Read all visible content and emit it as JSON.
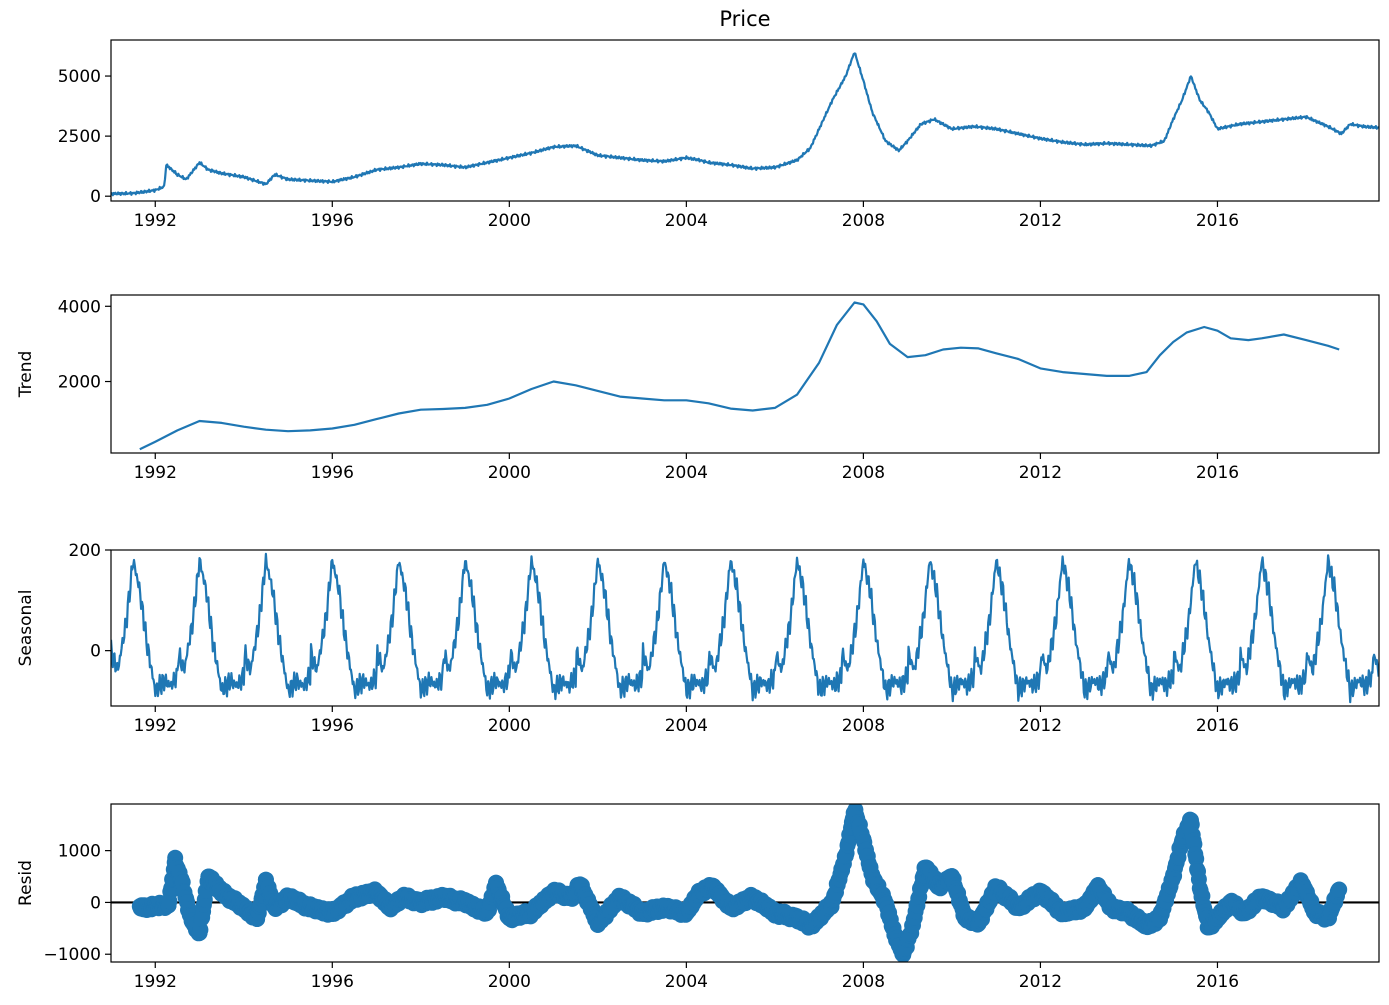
{
  "figure": {
    "title": "Price",
    "line_color": "#1f77b4",
    "zero_line_color": "#000000",
    "background": "#ffffff"
  },
  "chart_data": [
    {
      "type": "line",
      "title": "Price",
      "xlabel": "",
      "ylabel": "",
      "xlim": [
        1991.0,
        2019.65
      ],
      "ylim": [
        -200,
        6500
      ],
      "x_ticks": [
        1992,
        1996,
        2000,
        2004,
        2008,
        2012,
        2016
      ],
      "y_ticks": [
        0,
        2500,
        5000
      ],
      "y_tick_labels": [
        "0",
        "2500",
        "5000"
      ],
      "grid": false,
      "series": [
        {
          "x": [
            1991.0,
            1991.5,
            1992.0,
            1992.2,
            1992.25,
            1992.5,
            1992.7,
            1993.0,
            1993.2,
            1993.5,
            1994.0,
            1994.5,
            1994.7,
            1995.0,
            1995.5,
            1996.0,
            1996.5,
            1997.0,
            1997.5,
            1998.0,
            1998.5,
            1999.0,
            1999.5,
            2000.0,
            2000.5,
            2001.0,
            2001.5,
            2002.0,
            2002.5,
            2003.0,
            2003.5,
            2004.0,
            2004.3,
            2004.5,
            2005.0,
            2005.5,
            2006.0,
            2006.5,
            2006.8,
            2007.0,
            2007.3,
            2007.6,
            2007.8,
            2008.0,
            2008.2,
            2008.5,
            2008.8,
            2009.0,
            2009.3,
            2009.6,
            2010.0,
            2010.5,
            2011.0,
            2011.5,
            2012.0,
            2012.5,
            2013.0,
            2013.5,
            2014.0,
            2014.5,
            2014.8,
            2015.0,
            2015.2,
            2015.4,
            2015.6,
            2015.8,
            2016.0,
            2016.5,
            2017.0,
            2017.5,
            2018.0,
            2018.5,
            2018.8,
            2019.0,
            2019.3,
            2019.65
          ],
          "y": [
            100,
            120,
            250,
            400,
            1300,
            900,
            700,
            1400,
            1100,
            950,
            800,
            500,
            900,
            700,
            650,
            600,
            800,
            1100,
            1200,
            1350,
            1300,
            1200,
            1400,
            1600,
            1800,
            2050,
            2100,
            1700,
            1600,
            1500,
            1450,
            1600,
            1500,
            1400,
            1300,
            1150,
            1200,
            1500,
            2000,
            2800,
            4000,
            5000,
            6000,
            4800,
            3500,
            2300,
            1900,
            2300,
            3000,
            3200,
            2800,
            2900,
            2800,
            2600,
            2400,
            2250,
            2150,
            2200,
            2150,
            2100,
            2300,
            3200,
            4000,
            5000,
            4000,
            3500,
            2800,
            3000,
            3100,
            3200,
            3300,
            2900,
            2600,
            3000,
            2900,
            2850
          ]
        }
      ]
    },
    {
      "type": "line",
      "title": "",
      "xlabel": "",
      "ylabel": "Trend",
      "xlim": [
        1991.0,
        2019.65
      ],
      "ylim": [
        100,
        4300
      ],
      "x_ticks": [
        1992,
        1996,
        2000,
        2004,
        2008,
        2012,
        2016
      ],
      "y_ticks": [
        2000,
        4000
      ],
      "y_tick_labels": [
        "2000",
        "4000"
      ],
      "grid": false,
      "series": [
        {
          "x": [
            1991.65,
            1992.0,
            1992.5,
            1993.0,
            1993.5,
            1994.0,
            1994.5,
            1995.0,
            1995.5,
            1996.0,
            1996.5,
            1997.0,
            1997.5,
            1998.0,
            1998.5,
            1999.0,
            1999.5,
            2000.0,
            2000.5,
            2001.0,
            2001.5,
            2002.0,
            2002.5,
            2003.0,
            2003.5,
            2004.0,
            2004.5,
            2005.0,
            2005.5,
            2006.0,
            2006.5,
            2007.0,
            2007.4,
            2007.8,
            2008.0,
            2008.3,
            2008.6,
            2009.0,
            2009.4,
            2009.8,
            2010.2,
            2010.6,
            2011.0,
            2011.5,
            2012.0,
            2012.5,
            2013.0,
            2013.5,
            2014.0,
            2014.4,
            2014.7,
            2015.0,
            2015.3,
            2015.7,
            2016.0,
            2016.3,
            2016.7,
            2017.0,
            2017.5,
            2018.0,
            2018.5,
            2018.75
          ],
          "y": [
            200,
            400,
            700,
            950,
            900,
            800,
            720,
            680,
            700,
            750,
            850,
            1000,
            1150,
            1250,
            1270,
            1300,
            1380,
            1550,
            1800,
            2000,
            1900,
            1750,
            1600,
            1550,
            1500,
            1500,
            1420,
            1280,
            1230,
            1300,
            1650,
            2500,
            3500,
            4100,
            4050,
            3600,
            3000,
            2650,
            2700,
            2850,
            2900,
            2880,
            2750,
            2600,
            2350,
            2250,
            2200,
            2150,
            2150,
            2250,
            2700,
            3050,
            3300,
            3450,
            3350,
            3150,
            3100,
            3150,
            3250,
            3100,
            2950,
            2850
          ]
        }
      ]
    },
    {
      "type": "line",
      "title": "",
      "xlabel": "",
      "ylabel": "Seasonal",
      "xlim": [
        1991.0,
        2019.65
      ],
      "ylim": [
        -110,
        200
      ],
      "x_ticks": [
        1992,
        1996,
        2000,
        2004,
        2008,
        2012,
        2016
      ],
      "y_ticks": [
        0,
        200
      ],
      "y_tick_labels": [
        "0",
        "200"
      ],
      "grid": false,
      "period_years": 1.5,
      "series": [
        {
          "x": [
            1991.0,
            1991.15,
            1991.35,
            1991.5,
            1991.65,
            1991.8,
            1992.0,
            1992.2,
            1992.35,
            1992.5
          ],
          "y": [
            0,
            -40,
            60,
            180,
            120,
            20,
            -80,
            -60,
            -70,
            -50
          ]
        }
      ]
    },
    {
      "type": "scatter",
      "title": "",
      "xlabel": "",
      "ylabel": "Resid",
      "xlim": [
        1991.0,
        2019.65
      ],
      "ylim": [
        -1150,
        1900
      ],
      "x_ticks": [
        1992,
        1996,
        2000,
        2004,
        2008,
        2012,
        2016
      ],
      "y_ticks": [
        -1000,
        0,
        1000
      ],
      "y_tick_labels": [
        "−1000",
        "0",
        "1000"
      ],
      "zero_line": true,
      "grid": false,
      "series": [
        {
          "x": [
            1991.65,
            1992.0,
            1992.3,
            1992.45,
            1992.6,
            1992.8,
            1993.0,
            1993.2,
            1993.5,
            1994.0,
            1994.3,
            1994.5,
            1994.7,
            1995.0,
            1995.5,
            1996.0,
            1996.5,
            1997.0,
            1997.3,
            1997.6,
            1998.0,
            1998.5,
            1999.0,
            1999.5,
            1999.7,
            2000.0,
            2000.5,
            2001.0,
            2001.4,
            2001.6,
            2002.0,
            2002.5,
            2003.0,
            2003.5,
            2004.0,
            2004.3,
            2004.6,
            2005.0,
            2005.5,
            2006.0,
            2006.5,
            2006.8,
            2007.0,
            2007.3,
            2007.6,
            2007.8,
            2008.0,
            2008.2,
            2008.5,
            2008.7,
            2008.9,
            2009.1,
            2009.4,
            2009.7,
            2010.0,
            2010.3,
            2010.6,
            2011.0,
            2011.5,
            2012.0,
            2012.5,
            2013.0,
            2013.3,
            2013.6,
            2014.0,
            2014.4,
            2014.7,
            2015.0,
            2015.2,
            2015.4,
            2015.6,
            2015.8,
            2016.0,
            2016.3,
            2016.6,
            2017.0,
            2017.5,
            2017.9,
            2018.2,
            2018.5,
            2018.75
          ],
          "y": [
            -100,
            -80,
            -50,
            800,
            400,
            -300,
            -600,
            500,
            200,
            -100,
            -300,
            400,
            -100,
            100,
            -100,
            -200,
            100,
            200,
            -100,
            100,
            0,
            100,
            0,
            -200,
            350,
            -300,
            -200,
            200,
            100,
            350,
            -400,
            100,
            -200,
            -100,
            -200,
            200,
            300,
            -100,
            100,
            -200,
            -300,
            -450,
            -300,
            0,
            900,
            1800,
            1200,
            500,
            0,
            -600,
            -1000,
            -500,
            700,
            300,
            500,
            -300,
            -400,
            300,
            -100,
            200,
            -200,
            -100,
            300,
            -100,
            -200,
            -450,
            -300,
            500,
            1200,
            1600,
            300,
            -500,
            -300,
            0,
            -200,
            100,
            -100,
            400,
            -200,
            -300,
            250
          ]
        }
      ]
    }
  ]
}
